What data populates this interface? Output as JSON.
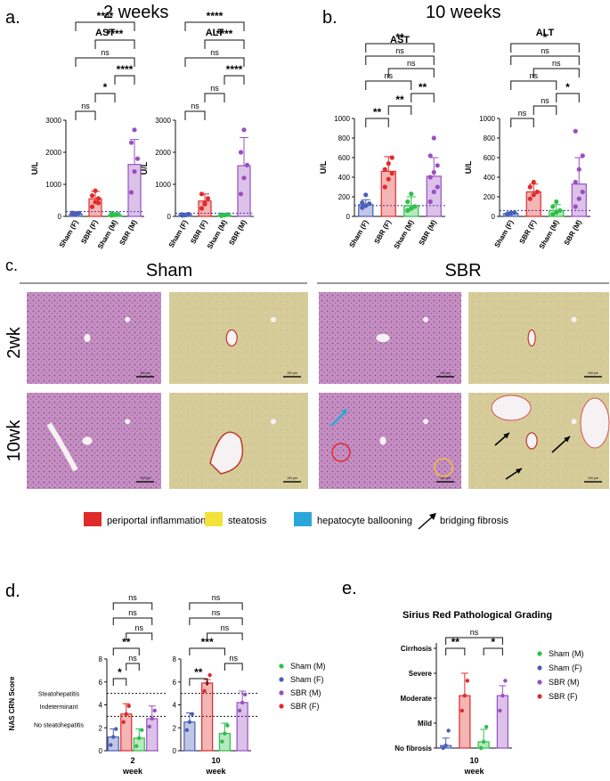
{
  "panel_a": {
    "letter": "a.",
    "title": "2 weeks",
    "charts": [
      {
        "title": "AST",
        "ylabel": "U/L",
        "yticks": [
          "0",
          "1000",
          "2000",
          "3000"
        ],
        "ymax": 3000,
        "categories": [
          "Sham (F)",
          "SBR (F)",
          "Sham (M)",
          "SBR (M)"
        ],
        "values": [
          80,
          550,
          60,
          1620
        ],
        "err": [
          40,
          230,
          30,
          780
        ],
        "points": [
          [
            60,
            90,
            100,
            110,
            70
          ],
          [
            300,
            450,
            560,
            650,
            800,
            420
          ],
          [
            30,
            50,
            70,
            90,
            60
          ],
          [
            750,
            1400,
            1800,
            2300,
            2700
          ]
        ],
        "ref": 150,
        "sig": [
          [
            "0",
            "1",
            "ns"
          ],
          [
            "1",
            "2",
            "*"
          ],
          [
            "2",
            "3",
            "****"
          ],
          [
            "0",
            "3",
            "ns"
          ],
          [
            "1",
            "3",
            "****"
          ],
          [
            "0",
            "3",
            "****"
          ]
        ]
      },
      {
        "title": "ALT",
        "ylabel": "U/L",
        "yticks": [
          "0",
          "1000",
          "2000",
          "3000"
        ],
        "ymax": 3000,
        "categories": [
          "Sham (F)",
          "SBR (F)",
          "Sham (M)",
          "SBR (M)"
        ],
        "values": [
          60,
          480,
          40,
          1580
        ],
        "err": [
          30,
          220,
          20,
          880
        ],
        "points": [
          [
            30,
            50,
            70,
            60,
            40
          ],
          [
            250,
            420,
            560,
            700,
            380
          ],
          [
            20,
            40,
            60,
            50
          ],
          [
            700,
            1200,
            1600,
            2000,
            2700
          ]
        ],
        "ref": 100,
        "sig": [
          [
            "0",
            "1",
            "ns"
          ],
          [
            "1",
            "2",
            "ns"
          ],
          [
            "2",
            "3",
            "****"
          ],
          [
            "0",
            "3",
            "ns"
          ],
          [
            "1",
            "3",
            "****"
          ],
          [
            "0",
            "3",
            "****"
          ]
        ]
      }
    ]
  },
  "panel_b": {
    "letter": "b.",
    "title": "10 weeks",
    "charts": [
      {
        "title": "AST",
        "ylabel": "U/L",
        "yticks": [
          "0",
          "200",
          "400",
          "600",
          "800",
          "1000"
        ],
        "ymax": 1000,
        "categories": [
          "Sham (F)",
          "SBR (F)",
          "Sham (M)",
          "SBR (M)"
        ],
        "values": [
          120,
          460,
          110,
          410
        ],
        "err": [
          50,
          150,
          90,
          190
        ],
        "points": [
          [
            90,
            110,
            130,
            140,
            220
          ],
          [
            300,
            380,
            440,
            480,
            540,
            600
          ],
          [
            60,
            80,
            100,
            150,
            230
          ],
          [
            150,
            250,
            300,
            400,
            450,
            520,
            620,
            800
          ]
        ],
        "ref": 110,
        "sig": [
          [
            "0",
            "1",
            "**"
          ],
          [
            "1",
            "2",
            "**"
          ],
          [
            "2",
            "3",
            "**"
          ],
          [
            "0",
            "2",
            "ns"
          ],
          [
            "1",
            "3",
            "ns"
          ],
          [
            "0",
            "3",
            "ns"
          ],
          [
            "0",
            "3",
            "**"
          ]
        ]
      },
      {
        "title": "ALT",
        "ylabel": "U/L",
        "yticks": [
          "0",
          "200",
          "400",
          "600",
          "800",
          "1000"
        ],
        "ymax": 1000,
        "categories": [
          "Sham (F)",
          "SBR (F)",
          "Sham (M)",
          "SBR (M)"
        ],
        "values": [
          30,
          250,
          60,
          330
        ],
        "err": [
          15,
          80,
          60,
          270
        ],
        "points": [
          [
            20,
            30,
            40,
            25,
            35
          ],
          [
            180,
            220,
            250,
            300,
            350
          ],
          [
            20,
            40,
            60,
            100,
            150
          ],
          [
            100,
            180,
            250,
            350,
            480,
            620,
            870
          ]
        ],
        "ref": 60,
        "sig": [
          [
            "0",
            "1",
            "ns"
          ],
          [
            "1",
            "2",
            "ns"
          ],
          [
            "2",
            "3",
            "*"
          ],
          [
            "0",
            "2",
            "ns"
          ],
          [
            "1",
            "3",
            "ns"
          ],
          [
            "0",
            "3",
            "ns"
          ],
          [
            "0",
            "3",
            "*"
          ]
        ]
      }
    ]
  },
  "panel_c": {
    "letter": "c.",
    "group_left": "Sham",
    "group_right": "SBR",
    "row_labels": [
      "2wk",
      "10wk"
    ],
    "scale_labels": [
      "100 μm",
      "100 μm",
      "100 μm",
      "100 μm",
      "100 μm",
      "100 μm",
      "100 μm",
      "100 μm"
    ],
    "legend": [
      {
        "label": "periportal inflammation",
        "color": "#e02b2b"
      },
      {
        "label": "steatosis",
        "color": "#f2e23a"
      },
      {
        "label": "hepatocyte ballooning",
        "color": "#2aa7d8"
      },
      {
        "label": "bridging fibrosis",
        "color": "#000000"
      }
    ]
  },
  "panel_d": {
    "letter": "d.",
    "ylabel": "NAS CRN Score",
    "yticks": [
      "0",
      "2",
      "4",
      "6",
      "8"
    ],
    "ymax": 8,
    "zone_labels": [
      "Steatohepatitis",
      "Indeterminant",
      "No steatohepatitis"
    ],
    "groups": [
      {
        "xtick": "2",
        "xlabel": "week",
        "values": [
          1.2,
          3.2,
          1.1,
          2.8
        ],
        "err": [
          0.7,
          0.9,
          0.8,
          1.1
        ],
        "sig": [
          [
            "0",
            "1",
            "*"
          ],
          [
            "1",
            "2",
            "ns"
          ],
          [
            "0",
            "2",
            "**"
          ],
          [
            "1",
            "3",
            "ns"
          ],
          [
            "0",
            "3",
            "ns"
          ],
          [
            "0",
            "3",
            "ns"
          ]
        ]
      },
      {
        "xtick": "10",
        "xlabel": "week",
        "values": [
          2.5,
          5.9,
          1.5,
          4.2
        ],
        "err": [
          0.8,
          0.3,
          0.9,
          1.0
        ],
        "sig": [
          [
            "0",
            "1",
            "**"
          ],
          [
            "2",
            "3",
            "ns"
          ],
          [
            "0",
            "2",
            "***"
          ],
          [
            "1",
            "3",
            "ns"
          ],
          [
            "0",
            "3",
            "ns"
          ],
          [
            "0",
            "3",
            "ns"
          ]
        ]
      }
    ],
    "legend": [
      {
        "label": "Sham (M)",
        "color": "#2fbf4a"
      },
      {
        "label": "Sham (F)",
        "color": "#4a5fb8"
      },
      {
        "label": "SBR (M)",
        "color": "#9a4fc0"
      },
      {
        "label": "SBR (F)",
        "color": "#e02b2b"
      }
    ]
  },
  "panel_e": {
    "letter": "e.",
    "title": "Sirius Red Pathological Grading",
    "grades": [
      "No fibrosis",
      "Mild",
      "Moderate",
      "Severe",
      "Cirrhosis"
    ],
    "xtick": "10",
    "xlabel": "week",
    "values": [
      0.1,
      2.1,
      0.25,
      2.1
    ],
    "err": [
      0.3,
      0.9,
      0.5,
      0.4
    ],
    "sig": [
      [
        "0",
        "1",
        "**"
      ],
      [
        "2",
        "3",
        "*"
      ],
      [
        "0",
        "3",
        "ns"
      ]
    ],
    "legend": [
      {
        "label": "Sham (M)",
        "color": "#2fbf4a"
      },
      {
        "label": "Sham (F)",
        "color": "#4a5fb8"
      },
      {
        "label": "SBR (M)",
        "color": "#9a4fc0"
      },
      {
        "label": "SBR (F)",
        "color": "#e02b2b"
      }
    ]
  },
  "colors": {
    "sham_f": "#4a5fb8",
    "sbr_f": "#e02b2b",
    "sham_m": "#2fbf4a",
    "sbr_m": "#9a4fc0",
    "he": "#c98fc0",
    "sirius": "#d8cf9c"
  }
}
